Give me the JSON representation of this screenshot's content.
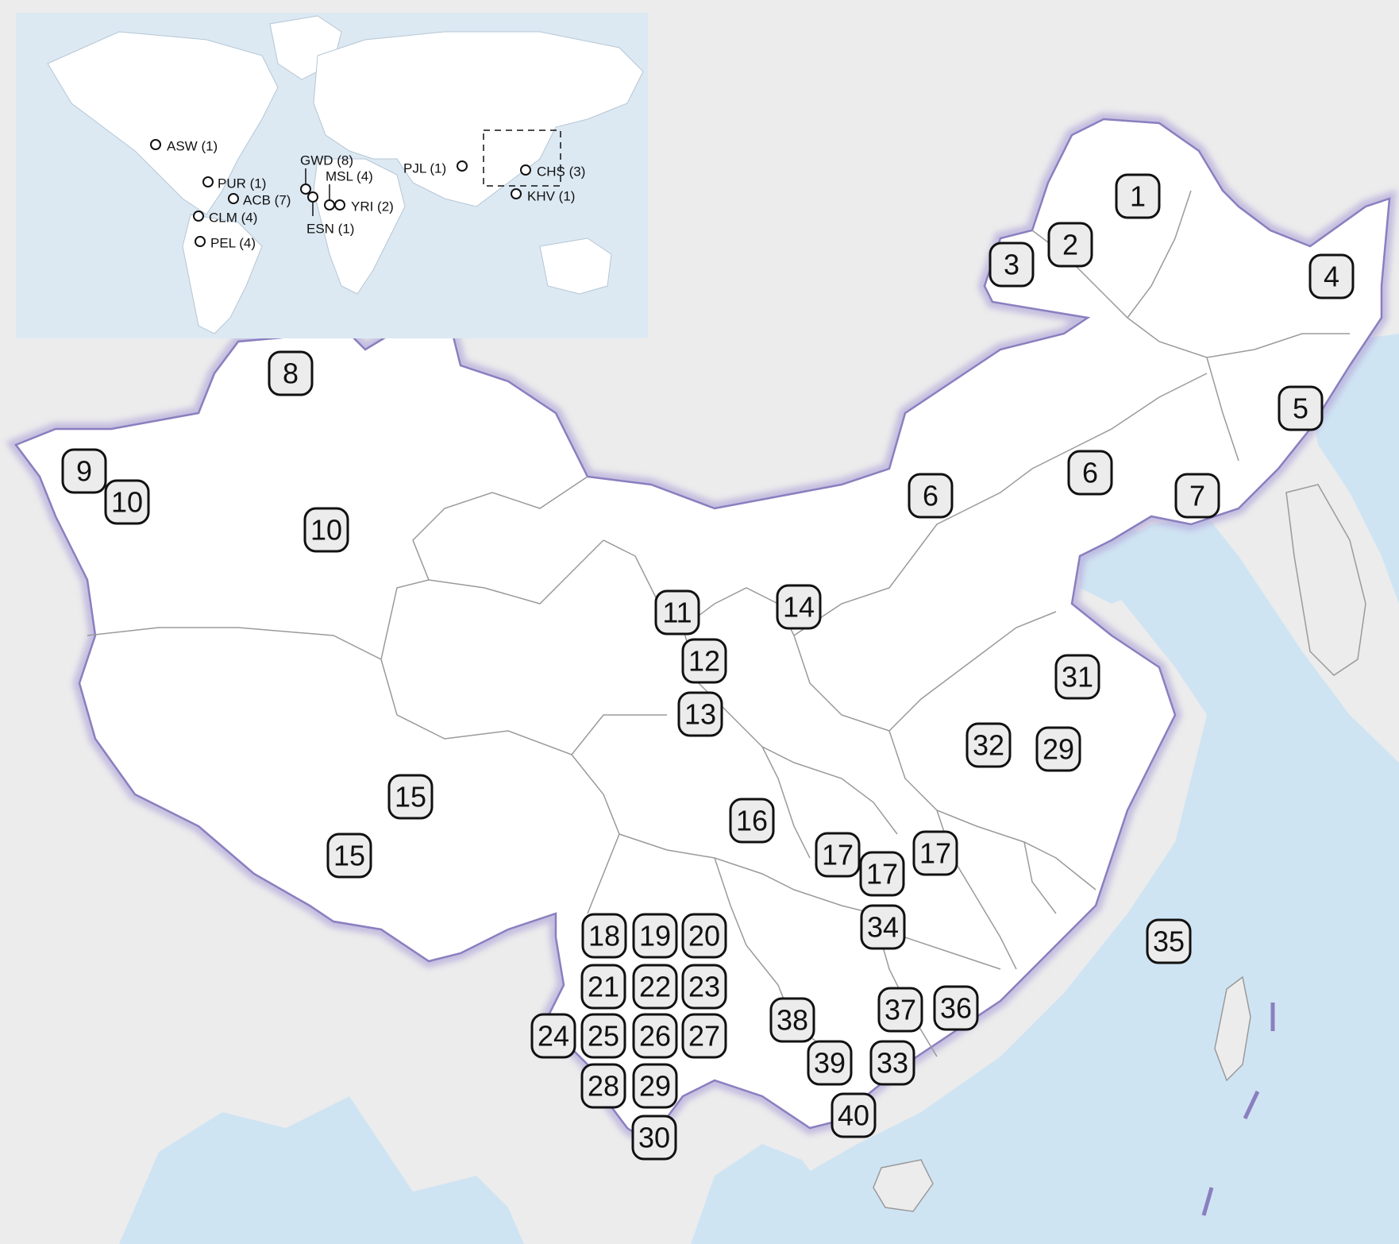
{
  "colors": {
    "background": "#ececec",
    "sea": "#cfe4f3",
    "inset_sea": "#dce9f3",
    "china_fill": "#ffffff",
    "border_glow": "#b7addb",
    "border_line": "#8a7fbf",
    "province_line": "#9a9a9a",
    "marker_fill": "#ececec",
    "marker_stroke": "#111111"
  },
  "inset": {
    "populations": [
      {
        "id": "asw",
        "label": "ASW (1)"
      },
      {
        "id": "pur",
        "label": "PUR (1)"
      },
      {
        "id": "acb",
        "label": "ACB (7)"
      },
      {
        "id": "clm",
        "label": "CLM (4)"
      },
      {
        "id": "pel",
        "label": "PEL (4)"
      },
      {
        "id": "gwd",
        "label": "GWD (8)"
      },
      {
        "id": "msl",
        "label": "MSL (4)"
      },
      {
        "id": "yri",
        "label": "YRI (2)"
      },
      {
        "id": "esn",
        "label": "ESN (1)"
      },
      {
        "id": "pjl",
        "label": "PJL (1)"
      },
      {
        "id": "chs",
        "label": "CHS (3)"
      },
      {
        "id": "khv",
        "label": "KHV (1)"
      }
    ]
  },
  "markers": [
    "1",
    "2",
    "3",
    "4",
    "5",
    "6",
    "6",
    "7",
    "8",
    "9",
    "10",
    "10",
    "11",
    "12",
    "13",
    "14",
    "15",
    "15",
    "16",
    "17",
    "17",
    "17",
    "18",
    "19",
    "20",
    "21",
    "22",
    "23",
    "24",
    "25",
    "26",
    "27",
    "28",
    "29",
    "29",
    "30",
    "31",
    "32",
    "33",
    "34",
    "35",
    "36",
    "37",
    "38",
    "39",
    "40"
  ]
}
